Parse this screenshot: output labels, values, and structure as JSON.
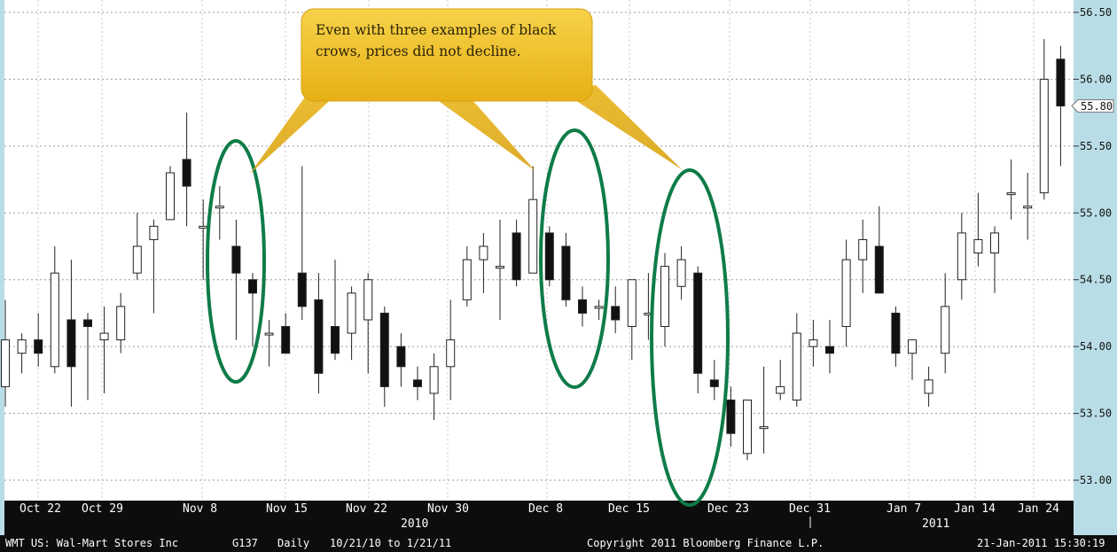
{
  "chart_data": {
    "type": "candlestick",
    "ticker": "WMT",
    "ylim": [
      52.9,
      56.5
    ],
    "yticks": [
      "56.50",
      "56.00",
      "55.50",
      "55.00",
      "54.50",
      "54.00",
      "53.50",
      "53.00"
    ],
    "last_price_label": "55.80",
    "xtick_labels": [
      "Oct 22",
      "Oct 29",
      "Nov 8",
      "Nov 15",
      "Nov 22",
      "Nov 30",
      "Dec 8",
      "Dec 15",
      "Dec 23",
      "Dec 31",
      "Jan 7",
      "Jan 14",
      "Jan 24"
    ],
    "year_labels": [
      "2010",
      "2011"
    ],
    "grid": true,
    "candles": [
      {
        "o": 53.7,
        "h": 54.35,
        "l": 53.55,
        "c": 54.05
      },
      {
        "o": 53.95,
        "h": 54.1,
        "l": 53.8,
        "c": 54.05
      },
      {
        "o": 54.05,
        "h": 54.25,
        "l": 53.85,
        "c": 53.95
      },
      {
        "o": 53.85,
        "h": 54.75,
        "l": 53.8,
        "c": 54.55
      },
      {
        "o": 54.2,
        "h": 54.65,
        "l": 53.55,
        "c": 53.85
      },
      {
        "o": 54.2,
        "h": 54.25,
        "l": 53.6,
        "c": 54.15
      },
      {
        "o": 54.05,
        "h": 54.3,
        "l": 53.65,
        "c": 54.1
      },
      {
        "o": 54.05,
        "h": 54.4,
        "l": 53.95,
        "c": 54.3
      },
      {
        "o": 54.55,
        "h": 55.0,
        "l": 54.5,
        "c": 54.75
      },
      {
        "o": 54.8,
        "h": 54.95,
        "l": 54.25,
        "c": 54.9
      },
      {
        "o": 54.95,
        "h": 55.35,
        "l": 54.95,
        "c": 55.3
      },
      {
        "o": 55.4,
        "h": 55.75,
        "l": 54.9,
        "c": 55.2
      },
      {
        "o": 54.9,
        "h": 55.1,
        "l": 54.5,
        "c": 54.9
      },
      {
        "o": 55.05,
        "h": 55.2,
        "l": 54.8,
        "c": 55.05
      },
      {
        "o": 54.75,
        "h": 54.95,
        "l": 54.05,
        "c": 54.55
      },
      {
        "o": 54.5,
        "h": 54.55,
        "l": 54.0,
        "c": 54.4
      },
      {
        "o": 54.1,
        "h": 54.2,
        "l": 53.85,
        "c": 54.1
      },
      {
        "o": 54.15,
        "h": 54.25,
        "l": 53.95,
        "c": 53.95
      },
      {
        "o": 54.55,
        "h": 55.35,
        "l": 54.2,
        "c": 54.3
      },
      {
        "o": 54.35,
        "h": 54.55,
        "l": 53.65,
        "c": 53.8
      },
      {
        "o": 54.15,
        "h": 54.65,
        "l": 53.9,
        "c": 53.95
      },
      {
        "o": 54.1,
        "h": 54.45,
        "l": 53.9,
        "c": 54.4
      },
      {
        "o": 54.2,
        "h": 54.55,
        "l": 53.8,
        "c": 54.5
      },
      {
        "o": 54.25,
        "h": 54.3,
        "l": 53.55,
        "c": 53.7
      },
      {
        "o": 54.0,
        "h": 54.1,
        "l": 53.7,
        "c": 53.85
      },
      {
        "o": 53.75,
        "h": 53.85,
        "l": 53.6,
        "c": 53.7
      },
      {
        "o": 53.65,
        "h": 53.95,
        "l": 53.45,
        "c": 53.85
      },
      {
        "o": 53.85,
        "h": 54.35,
        "l": 53.6,
        "c": 54.05
      },
      {
        "o": 54.35,
        "h": 54.75,
        "l": 54.3,
        "c": 54.65
      },
      {
        "o": 54.65,
        "h": 54.85,
        "l": 54.4,
        "c": 54.75
      },
      {
        "o": 54.6,
        "h": 54.95,
        "l": 54.2,
        "c": 54.6
      },
      {
        "o": 54.85,
        "h": 54.95,
        "l": 54.45,
        "c": 54.5
      },
      {
        "o": 54.55,
        "h": 55.35,
        "l": 54.55,
        "c": 55.1
      },
      {
        "o": 54.85,
        "h": 54.9,
        "l": 54.45,
        "c": 54.5
      },
      {
        "o": 54.75,
        "h": 54.85,
        "l": 54.3,
        "c": 54.35
      },
      {
        "o": 54.35,
        "h": 54.45,
        "l": 54.15,
        "c": 54.25
      },
      {
        "o": 54.3,
        "h": 54.35,
        "l": 54.2,
        "c": 54.3
      },
      {
        "o": 54.3,
        "h": 54.45,
        "l": 54.1,
        "c": 54.2
      },
      {
        "o": 54.15,
        "h": 54.5,
        "l": 53.9,
        "c": 54.5
      },
      {
        "o": 54.25,
        "h": 54.55,
        "l": 54.05,
        "c": 54.25
      },
      {
        "o": 54.15,
        "h": 54.7,
        "l": 54.0,
        "c": 54.6
      },
      {
        "o": 54.45,
        "h": 54.75,
        "l": 54.35,
        "c": 54.65
      },
      {
        "o": 54.55,
        "h": 54.6,
        "l": 53.65,
        "c": 53.8
      },
      {
        "o": 53.75,
        "h": 53.9,
        "l": 53.6,
        "c": 53.7
      },
      {
        "o": 53.6,
        "h": 53.7,
        "l": 53.25,
        "c": 53.35
      },
      {
        "o": 53.2,
        "h": 53.6,
        "l": 53.15,
        "c": 53.6
      },
      {
        "o": 53.4,
        "h": 53.85,
        "l": 53.2,
        "c": 53.4
      },
      {
        "o": 53.65,
        "h": 53.9,
        "l": 53.6,
        "c": 53.7
      },
      {
        "o": 53.6,
        "h": 54.25,
        "l": 53.55,
        "c": 54.1
      },
      {
        "o": 54.0,
        "h": 54.2,
        "l": 53.85,
        "c": 54.05
      },
      {
        "o": 54.0,
        "h": 54.2,
        "l": 53.8,
        "c": 53.95
      },
      {
        "o": 54.15,
        "h": 54.8,
        "l": 54.0,
        "c": 54.65
      },
      {
        "o": 54.65,
        "h": 54.95,
        "l": 54.4,
        "c": 54.8
      },
      {
        "o": 54.75,
        "h": 55.05,
        "l": 54.4,
        "c": 54.4
      },
      {
        "o": 54.25,
        "h": 54.3,
        "l": 53.85,
        "c": 53.95
      },
      {
        "o": 53.95,
        "h": 54.05,
        "l": 53.75,
        "c": 54.05
      },
      {
        "o": 53.65,
        "h": 53.85,
        "l": 53.55,
        "c": 53.75
      },
      {
        "o": 53.95,
        "h": 54.55,
        "l": 53.8,
        "c": 54.3
      },
      {
        "o": 54.5,
        "h": 55.0,
        "l": 54.35,
        "c": 54.85
      },
      {
        "o": 54.7,
        "h": 55.15,
        "l": 54.6,
        "c": 54.8
      },
      {
        "o": 54.7,
        "h": 54.9,
        "l": 54.4,
        "c": 54.85
      },
      {
        "o": 55.15,
        "h": 55.4,
        "l": 54.95,
        "c": 55.15
      },
      {
        "o": 55.05,
        "h": 55.3,
        "l": 54.8,
        "c": 55.05
      },
      {
        "o": 55.15,
        "h": 56.3,
        "l": 55.1,
        "c": 56.0
      },
      {
        "o": 56.15,
        "h": 56.25,
        "l": 55.35,
        "c": 55.8
      }
    ]
  },
  "callout": {
    "text": "Even with three examples of black crows, prices did not decline."
  },
  "footer": {
    "security": "WMT  US: Wal-Mart Stores Inc",
    "page": "G137",
    "period": "Daily",
    "range": "10/21/10 to 1/21/11",
    "copyright": "Copyright 2011 Bloomberg Finance L.P.",
    "timestamp": "21-Jan-2011 15:30:19"
  },
  "colors": {
    "background_frame": "#b9dde6",
    "plot_bg": "#ffffff",
    "axis_bar": "#0d0d0d",
    "candle_down": "#111111",
    "candle_up": "#ffffff",
    "ellipse": "#0e7c48",
    "callout_fill": "#f0bf1c"
  }
}
